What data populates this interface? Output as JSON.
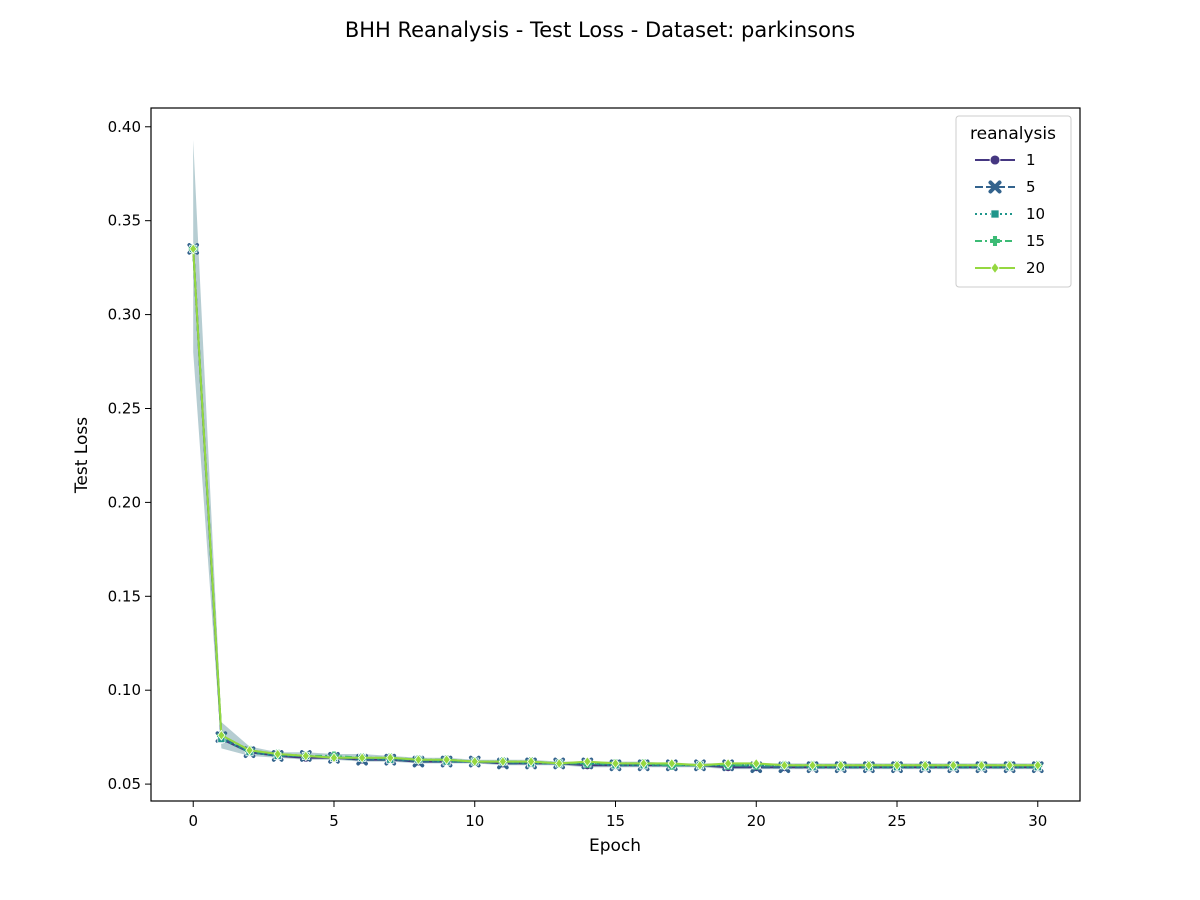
{
  "chart_data": {
    "type": "line",
    "title": "BHH Reanalysis - Test Loss - Dataset: parkinsons",
    "xlabel": "Epoch",
    "ylabel": "Test Loss",
    "xlim": [
      -1.5,
      31.5
    ],
    "ylim": [
      0.041,
      0.41
    ],
    "x_ticks": [
      0,
      5,
      10,
      15,
      20,
      25,
      30
    ],
    "y_ticks": [
      0.05,
      0.1,
      0.15,
      0.2,
      0.25,
      0.3,
      0.35,
      0.4
    ],
    "y_tick_labels": [
      "0.05",
      "0.10",
      "0.15",
      "0.20",
      "0.25",
      "0.30",
      "0.35",
      "0.40"
    ],
    "grid": false,
    "legend_title": "reanalysis",
    "legend_position": "top-right",
    "x": [
      0,
      1,
      2,
      3,
      4,
      5,
      6,
      7,
      8,
      9,
      10,
      11,
      12,
      13,
      14,
      15,
      16,
      17,
      18,
      19,
      20,
      21,
      22,
      23,
      24,
      25,
      26,
      27,
      28,
      29,
      30
    ],
    "series": [
      {
        "name": "1",
        "color": "#453781",
        "dash": "solid",
        "marker": "circle",
        "values": [
          0.335,
          0.074,
          0.067,
          0.065,
          0.064,
          0.064,
          0.063,
          0.063,
          0.062,
          0.062,
          0.062,
          0.061,
          0.061,
          0.061,
          0.06,
          0.06,
          0.06,
          0.06,
          0.06,
          0.059,
          0.059,
          0.059,
          0.059,
          0.059,
          0.059,
          0.059,
          0.059,
          0.059,
          0.059,
          0.059,
          0.059
        ]
      },
      {
        "name": "5",
        "color": "#33638d",
        "dash": "dashed",
        "marker": "x",
        "values": [
          0.335,
          0.075,
          0.067,
          0.065,
          0.065,
          0.064,
          0.063,
          0.063,
          0.062,
          0.062,
          0.062,
          0.061,
          0.061,
          0.061,
          0.061,
          0.06,
          0.06,
          0.06,
          0.06,
          0.06,
          0.059,
          0.059,
          0.059,
          0.059,
          0.059,
          0.059,
          0.059,
          0.059,
          0.059,
          0.059,
          0.059
        ]
      },
      {
        "name": "10",
        "color": "#1f968b",
        "dash": "dotted",
        "marker": "square",
        "values": [
          0.335,
          0.074,
          0.067,
          0.065,
          0.065,
          0.064,
          0.064,
          0.063,
          0.063,
          0.062,
          0.062,
          0.062,
          0.061,
          0.061,
          0.061,
          0.06,
          0.06,
          0.06,
          0.06,
          0.06,
          0.06,
          0.06,
          0.059,
          0.059,
          0.059,
          0.059,
          0.059,
          0.059,
          0.059,
          0.059,
          0.059
        ]
      },
      {
        "name": "15",
        "color": "#3cbb75",
        "dash": "dashdot",
        "marker": "plus",
        "values": [
          0.335,
          0.076,
          0.068,
          0.066,
          0.065,
          0.065,
          0.064,
          0.064,
          0.063,
          0.063,
          0.062,
          0.062,
          0.062,
          0.061,
          0.061,
          0.061,
          0.061,
          0.06,
          0.06,
          0.06,
          0.06,
          0.06,
          0.06,
          0.06,
          0.06,
          0.06,
          0.06,
          0.06,
          0.06,
          0.06,
          0.06
        ]
      },
      {
        "name": "20",
        "color": "#95d840",
        "dash": "solid",
        "marker": "diamond",
        "values": [
          0.335,
          0.076,
          0.068,
          0.066,
          0.065,
          0.064,
          0.064,
          0.064,
          0.063,
          0.063,
          0.062,
          0.062,
          0.062,
          0.061,
          0.062,
          0.061,
          0.061,
          0.061,
          0.06,
          0.061,
          0.061,
          0.06,
          0.06,
          0.06,
          0.06,
          0.06,
          0.06,
          0.06,
          0.06,
          0.06,
          0.06
        ]
      }
    ],
    "confidence_band": {
      "color": "#2f6f7f",
      "upper": [
        0.393,
        0.083,
        0.07,
        0.067,
        0.067,
        0.066,
        0.066,
        0.065,
        0.064,
        0.064,
        0.063,
        0.063,
        0.063,
        0.062,
        0.062,
        0.062,
        0.062,
        0.061,
        0.061,
        0.061,
        0.061,
        0.061,
        0.061,
        0.061,
        0.061,
        0.061,
        0.061,
        0.061,
        0.061,
        0.061,
        0.061
      ],
      "lower": [
        0.28,
        0.069,
        0.065,
        0.064,
        0.063,
        0.063,
        0.062,
        0.062,
        0.061,
        0.061,
        0.061,
        0.06,
        0.06,
        0.06,
        0.059,
        0.059,
        0.059,
        0.059,
        0.059,
        0.058,
        0.058,
        0.058,
        0.058,
        0.058,
        0.058,
        0.058,
        0.058,
        0.058,
        0.058,
        0.058,
        0.058
      ]
    }
  }
}
